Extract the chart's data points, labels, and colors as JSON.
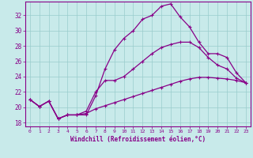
{
  "xlabel": "Windchill (Refroidissement éolien,°C)",
  "bg_color": "#c8eaea",
  "line_color": "#880088",
  "grid_color": "#99cccc",
  "xlim": [
    -0.5,
    23.5
  ],
  "ylim": [
    17.5,
    33.8
  ],
  "xticks": [
    0,
    1,
    2,
    3,
    4,
    5,
    6,
    7,
    8,
    9,
    10,
    11,
    12,
    13,
    14,
    15,
    16,
    17,
    18,
    19,
    20,
    21,
    22,
    23
  ],
  "yticks": [
    18,
    20,
    22,
    24,
    26,
    28,
    30,
    32
  ],
  "line1_x": [
    0,
    1,
    2,
    3,
    4,
    5,
    6,
    7,
    8,
    9,
    10,
    11,
    12,
    13,
    14,
    15,
    16,
    17,
    18,
    19,
    20,
    21,
    22,
    23
  ],
  "line1_y": [
    21.0,
    20.1,
    20.8,
    18.5,
    19.0,
    19.0,
    19.0,
    21.5,
    25.0,
    27.5,
    29.0,
    30.0,
    31.5,
    32.0,
    33.2,
    33.5,
    31.8,
    30.5,
    28.5,
    27.0,
    27.0,
    26.5,
    24.5,
    23.2
  ],
  "line2_x": [
    0,
    1,
    2,
    3,
    4,
    5,
    6,
    7,
    8,
    9,
    10,
    11,
    12,
    13,
    14,
    15,
    16,
    17,
    18,
    19,
    20,
    21,
    22,
    23
  ],
  "line2_y": [
    21.0,
    20.1,
    20.8,
    18.5,
    19.0,
    19.0,
    19.5,
    22.0,
    23.5,
    23.5,
    24.0,
    25.0,
    26.0,
    27.0,
    27.8,
    28.2,
    28.5,
    28.5,
    27.8,
    26.5,
    25.5,
    25.0,
    23.8,
    23.2
  ],
  "line3_x": [
    0,
    1,
    2,
    3,
    4,
    5,
    6,
    7,
    8,
    9,
    10,
    11,
    12,
    13,
    14,
    15,
    16,
    17,
    18,
    19,
    20,
    21,
    22,
    23
  ],
  "line3_y": [
    21.0,
    20.1,
    20.8,
    18.5,
    19.0,
    19.0,
    19.2,
    19.8,
    20.2,
    20.6,
    21.0,
    21.4,
    21.8,
    22.2,
    22.6,
    23.0,
    23.4,
    23.7,
    23.9,
    23.9,
    23.8,
    23.7,
    23.5,
    23.2
  ]
}
